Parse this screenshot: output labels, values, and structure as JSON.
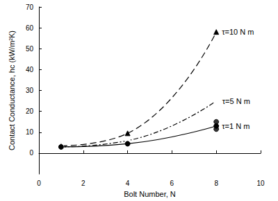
{
  "chart_data": {
    "type": "line",
    "xlabel": "Bolt Number, N",
    "ylabel": "Contact Conductance, hc (kW/m²K)",
    "xlim": [
      0,
      10
    ],
    "xticks": [
      0,
      2,
      4,
      6,
      8,
      10
    ],
    "ylim": [
      -10,
      70
    ],
    "yticks": [
      0,
      10,
      20,
      30,
      40,
      50,
      60,
      70
    ],
    "grid": false,
    "series": [
      {
        "name": "τ=10 N m",
        "color": "#000000",
        "marker": "triangle",
        "line_style": "dashed",
        "x": [
          1,
          4,
          8
        ],
        "values": [
          3.5,
          9.5,
          58
        ]
      },
      {
        "name": "τ=5 N m",
        "color": "#000000",
        "marker": "open_circle",
        "line_style": "dashdot",
        "x": [
          1,
          4,
          8
        ],
        "values": [
          3,
          6,
          25
        ]
      },
      {
        "name": "τ=1 N m",
        "color": "#000000",
        "marker": "circle",
        "line_style": "solid",
        "x": [
          1,
          4,
          8
        ],
        "values": [
          3,
          4.5,
          13
        ]
      },
      {
        "type": "scatter",
        "color": "#000000",
        "marker": "circle",
        "x": [
          8,
          8
        ],
        "values": [
          15,
          11.5
        ]
      }
    ]
  }
}
